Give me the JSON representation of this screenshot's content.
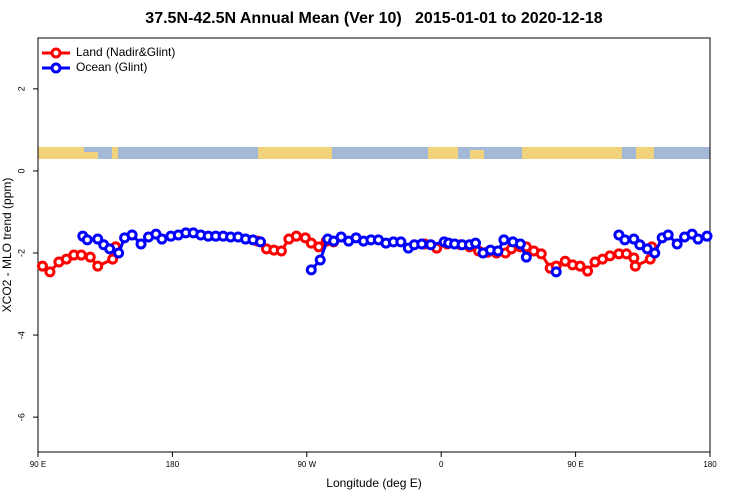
{
  "chart_data": {
    "type": "line",
    "title": "37.5N-42.5N Annual Mean (Ver 10)   2015-01-01 to 2020-12-18",
    "x_label": "Longitude (deg E)",
    "y_label": "XCO2 - MLO trend (ppm)",
    "xlim": [
      90,
      540
    ],
    "xticks": [
      {
        "value": 90,
        "label": "90 E"
      },
      180,
      {
        "value": 270,
        "label": "90 W"
      },
      {
        "value": 360,
        "label": "0"
      },
      {
        "value": 450,
        "label": "90 E"
      },
      {
        "value": 540,
        "label": "180"
      }
    ],
    "ylim": [
      -6.85,
      3.24
    ],
    "yticks": [
      -6,
      -4,
      -2,
      0,
      2
    ],
    "legend": "top-left",
    "series": [
      {
        "name": "Land (Nadir&Glint)",
        "color": "#ff0000",
        "x": [
          93,
          98,
          104,
          109,
          114,
          119,
          125,
          130,
          140,
          142,
          null,
          237,
          243,
          248,
          253,
          258,
          263,
          269,
          273,
          278,
          283,
          288,
          null,
          349,
          357,
          364,
          373,
          379,
          385,
          391,
          397,
          403,
          407,
          413,
          417,
          422,
          427,
          433,
          437,
          443,
          448,
          453,
          458,
          463,
          468,
          473,
          479,
          484,
          489,
          490,
          500,
          501
        ],
        "values": [
          -2.32,
          -2.46,
          -2.22,
          -2.15,
          -2.05,
          -2.05,
          -2.1,
          -2.32,
          -2.15,
          -1.85,
          null,
          -1.71,
          -1.9,
          -1.93,
          -1.95,
          -1.66,
          -1.59,
          -1.63,
          -1.76,
          -1.85,
          -1.71,
          -1.73,
          null,
          -1.78,
          -1.88,
          -1.78,
          -1.8,
          -1.85,
          -1.95,
          -1.98,
          -2.0,
          -2.0,
          -1.9,
          -1.85,
          -1.85,
          -1.95,
          -2.02,
          -2.37,
          -2.32,
          -2.2,
          -2.29,
          -2.32,
          -2.44,
          -2.22,
          -2.15,
          -2.07,
          -2.02,
          -2.02,
          -2.12,
          -2.32,
          -2.15,
          -1.85
        ]
      },
      {
        "name": "Ocean (Glint)",
        "color": "#0000ff",
        "x": [
          120,
          123,
          130,
          134,
          138,
          144,
          148,
          153,
          159,
          164,
          169,
          173,
          179,
          184,
          189,
          194,
          199,
          204,
          209,
          214,
          219,
          224,
          229,
          234,
          239,
          null,
          273,
          279,
          284,
          288,
          293,
          298,
          303,
          308,
          313,
          318,
          323,
          328,
          333,
          338,
          342,
          347,
          353,
          362,
          365,
          369,
          374,
          379,
          383,
          388,
          393,
          398,
          402,
          408,
          413,
          417,
          null,
          437,
          null,
          479,
          483,
          489,
          493,
          498,
          503,
          508,
          512,
          518,
          523,
          528,
          532,
          538
        ],
        "values": [
          -1.59,
          -1.68,
          -1.66,
          -1.8,
          -1.9,
          -2.0,
          -1.63,
          -1.56,
          -1.78,
          -1.61,
          -1.54,
          -1.66,
          -1.59,
          -1.56,
          -1.51,
          -1.51,
          -1.56,
          -1.59,
          -1.59,
          -1.59,
          -1.61,
          -1.61,
          -1.66,
          -1.68,
          -1.73,
          null,
          -2.41,
          -2.17,
          -1.66,
          -1.71,
          -1.61,
          -1.71,
          -1.63,
          -1.71,
          -1.68,
          -1.68,
          -1.76,
          -1.73,
          -1.73,
          -1.88,
          -1.8,
          -1.78,
          -1.8,
          -1.73,
          -1.76,
          -1.78,
          -1.8,
          -1.8,
          -1.76,
          -2.0,
          -1.93,
          -1.95,
          -1.68,
          -1.73,
          -1.78,
          -2.1,
          null,
          -2.46,
          null,
          -1.56,
          -1.68,
          -1.66,
          -1.8,
          -1.9,
          -2.0,
          -1.63,
          -1.56,
          -1.78,
          -1.61,
          -1.54,
          -1.66,
          -1.59
        ]
      }
    ]
  }
}
